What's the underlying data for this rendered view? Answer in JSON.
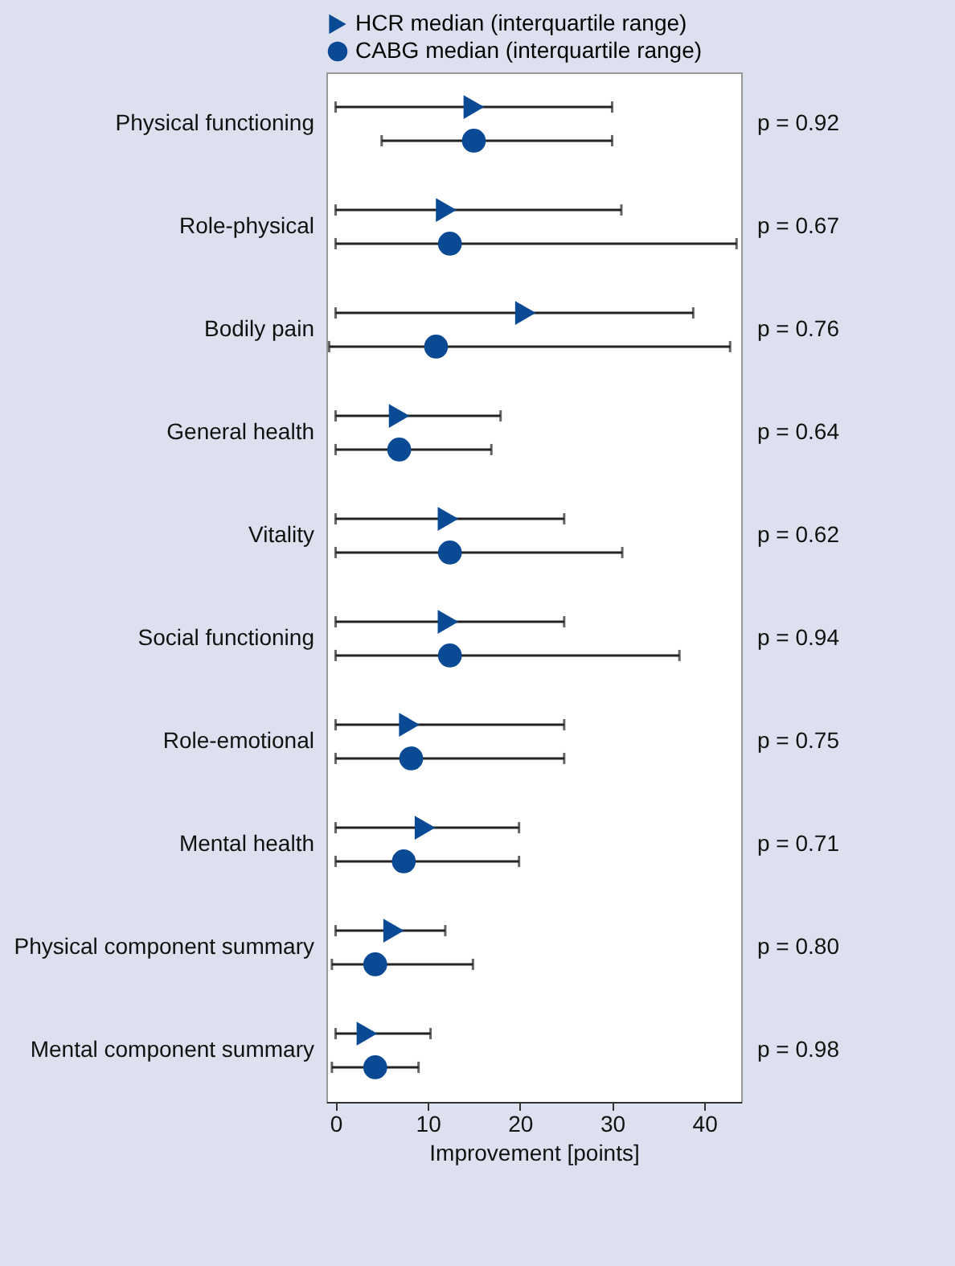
{
  "chart_data": {
    "type": "scatter",
    "orientation": "horizontal",
    "xlabel": "Improvement [points]",
    "categories": [
      "Physical functioning",
      "Role-physical",
      "Bodily pain",
      "General health",
      "Vitality",
      "Social functioning",
      "Role-emotional",
      "Mental health",
      "Physical component summary",
      "Mental component summary"
    ],
    "series": [
      {
        "name": "HCR median (interquartile range)",
        "color": "#0a4a94",
        "marker": "triangle",
        "values": [
          15,
          12,
          20.6,
          6.9,
          12.2,
          12.2,
          8,
          9.7,
          6.3,
          3.4
        ],
        "errors": [
          [
            0,
            30
          ],
          [
            0,
            31
          ],
          [
            0,
            38.8
          ],
          [
            0,
            17.9
          ],
          [
            0,
            24.8
          ],
          [
            0,
            24.8
          ],
          [
            0,
            24.8
          ],
          [
            0,
            19.9
          ],
          [
            0,
            11.9
          ],
          [
            0,
            10.3
          ]
        ]
      },
      {
        "name": "CABG median (interquartile range)",
        "color": "#0a4a94",
        "marker": "circle",
        "values": [
          15,
          12.4,
          10.9,
          6.9,
          12.4,
          12.4,
          8.2,
          7.4,
          4.3,
          4.3
        ],
        "errors": [
          [
            5,
            30
          ],
          [
            0,
            43.5
          ],
          [
            -0.7,
            42.8
          ],
          [
            0,
            16.9
          ],
          [
            0,
            31.1
          ],
          [
            0,
            37.3
          ],
          [
            0,
            24.8
          ],
          [
            0,
            19.9
          ],
          [
            -0.4,
            14.9
          ],
          [
            -0.4,
            9
          ]
        ]
      }
    ],
    "xlim": [
      -1,
      44
    ],
    "xticks": [
      0,
      10,
      20,
      30,
      40
    ],
    "grid": false,
    "legend": "top",
    "annotations": [
      "p = 0.92",
      "p = 0.67",
      "p = 0.76",
      "p = 0.64",
      "p = 0.62",
      "p = 0.94",
      "p = 0.75",
      "p = 0.71",
      "p = 0.80",
      "p = 0.98"
    ]
  }
}
